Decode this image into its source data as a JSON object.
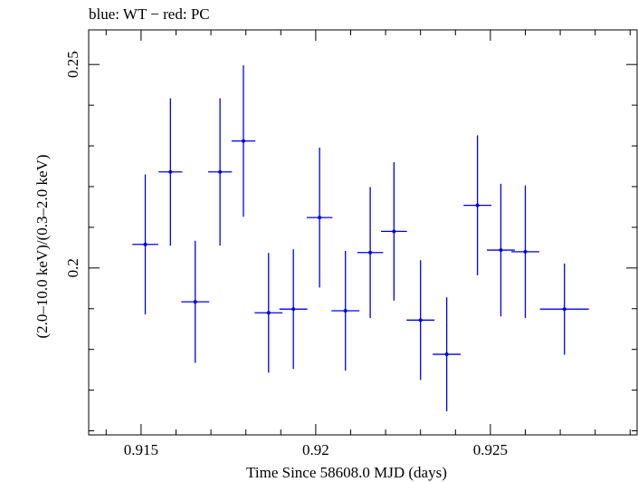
{
  "chart_data": {
    "type": "scatter",
    "title": "blue: WT − red: PC",
    "xlabel": "Time Since 58608.0 MJD (days)",
    "ylabel": "(2.0–10.0 keV)/(0.3–2.0 keV)",
    "xlim": [
      0.9135,
      0.9292
    ],
    "ylim": [
      0.159,
      0.2585
    ],
    "x_ticks": [
      {
        "value": 0.915,
        "label": "0.915"
      },
      {
        "value": 0.92,
        "label": "0.92"
      },
      {
        "value": 0.925,
        "label": "0.925"
      }
    ],
    "y_ticks": [
      {
        "value": 0.2,
        "label": "0.2"
      },
      {
        "value": 0.25,
        "label": "0.25"
      }
    ],
    "grid": false,
    "series": [
      {
        "color": "#0000ee",
        "points": [
          {
            "x": 0.91512,
            "xerr": 0.00037,
            "y": 0.2058,
            "yerr": 0.0172
          },
          {
            "x": 0.91584,
            "xerr": 0.00034,
            "y": 0.2236,
            "yerr": 0.0181
          },
          {
            "x": 0.91655,
            "xerr": 0.0004,
            "y": 0.1917,
            "yerr": 0.015
          },
          {
            "x": 0.91726,
            "xerr": 0.00034,
            "y": 0.2236,
            "yerr": 0.0181
          },
          {
            "x": 0.91793,
            "xerr": 0.00034,
            "y": 0.2312,
            "yerr": 0.0186
          },
          {
            "x": 0.91865,
            "xerr": 0.0004,
            "y": 0.189,
            "yerr": 0.0147
          },
          {
            "x": 0.91936,
            "xerr": 0.0004,
            "y": 0.1899,
            "yerr": 0.0147
          },
          {
            "x": 0.92011,
            "xerr": 0.00037,
            "y": 0.2124,
            "yerr": 0.0172
          },
          {
            "x": 0.92085,
            "xerr": 0.0004,
            "y": 0.1895,
            "yerr": 0.0147
          },
          {
            "x": 0.92156,
            "xerr": 0.00037,
            "y": 0.2038,
            "yerr": 0.0161
          },
          {
            "x": 0.92224,
            "xerr": 0.00037,
            "y": 0.209,
            "yerr": 0.017
          },
          {
            "x": 0.923,
            "xerr": 0.0004,
            "y": 0.1872,
            "yerr": 0.0147
          },
          {
            "x": 0.92375,
            "xerr": 0.0004,
            "y": 0.1788,
            "yerr": 0.014
          },
          {
            "x": 0.92463,
            "xerr": 0.0004,
            "y": 0.2154,
            "yerr": 0.0172
          },
          {
            "x": 0.9253,
            "xerr": 0.0004,
            "y": 0.2044,
            "yerr": 0.0163
          },
          {
            "x": 0.926,
            "xerr": 0.0004,
            "y": 0.204,
            "yerr": 0.0163
          },
          {
            "x": 0.92712,
            "xerr": 0.0007,
            "y": 0.1899,
            "yerr": 0.0112
          }
        ]
      }
    ]
  }
}
